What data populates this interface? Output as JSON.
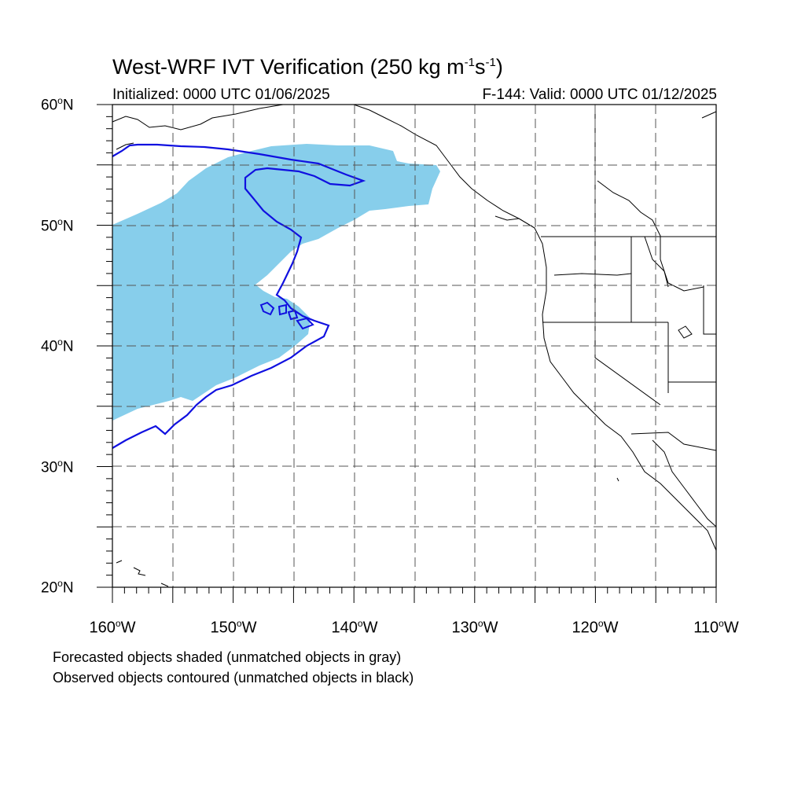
{
  "figure": {
    "title_main": "West-WRF IVT Verification (250 kg m",
    "title_exp1": "-1",
    "title_mid": "s",
    "title_exp2": "-1",
    "title_end": ")",
    "init_label": "Initialized: 0000 UTC 01/06/2025",
    "valid_label": "F-144: Valid: 0000 UTC 01/12/2025"
  },
  "axes": {
    "lat_labels": [
      {
        "num": "60",
        "deg": "o",
        "hemi": "N"
      },
      {
        "num": "50",
        "deg": "o",
        "hemi": "N"
      },
      {
        "num": "40",
        "deg": "o",
        "hemi": "N"
      },
      {
        "num": "30",
        "deg": "o",
        "hemi": "N"
      },
      {
        "num": "20",
        "deg": "o",
        "hemi": "N"
      }
    ],
    "lon_labels": [
      {
        "num": "160",
        "deg": "o",
        "hemi": "W"
      },
      {
        "num": "150",
        "deg": "o",
        "hemi": "W"
      },
      {
        "num": "140",
        "deg": "o",
        "hemi": "W"
      },
      {
        "num": "130",
        "deg": "o",
        "hemi": "W"
      },
      {
        "num": "120",
        "deg": "o",
        "hemi": "W"
      },
      {
        "num": "110",
        "deg": "o",
        "hemi": "W"
      }
    ]
  },
  "notes": {
    "line1": "Forecasted objects shaded (unmatched objects in gray)",
    "line2": "Observed objects contoured (unmatched objects in black)"
  },
  "colors": {
    "forecast_fill": "#87ceeb",
    "observed_contour": "#1010e0",
    "coastline": "#000000",
    "grid": "#555555"
  }
}
